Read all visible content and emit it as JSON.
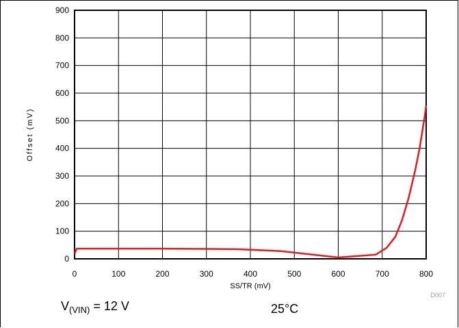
{
  "chart_data": {
    "type": "line",
    "title": "",
    "xlabel": "SS/TR (mV)",
    "ylabel": "Offset (mV)",
    "xlim": [
      0,
      800
    ],
    "ylim": [
      0,
      900
    ],
    "x_ticks": [
      0,
      100,
      200,
      300,
      400,
      500,
      600,
      700,
      800
    ],
    "y_ticks": [
      0,
      100,
      200,
      300,
      400,
      500,
      600,
      700,
      800,
      900
    ],
    "grid": true,
    "legend": "none",
    "series": [
      {
        "color": "#e41a1c",
        "x": [
          0,
          5,
          100,
          200,
          300,
          370,
          470,
          600,
          685,
          710,
          730,
          745,
          760,
          775,
          785,
          792,
          797,
          800
        ],
        "y": [
          18,
          37,
          37,
          37,
          36,
          35,
          28,
          5,
          15,
          40,
          80,
          140,
          220,
          320,
          400,
          470,
          520,
          555
        ]
      }
    ],
    "figure_code": "D007"
  },
  "conditions": {
    "vin_prefix": "V",
    "vin_sub": "(VIN)",
    "vin_value": " = 12 V",
    "temperature": "25°C"
  }
}
